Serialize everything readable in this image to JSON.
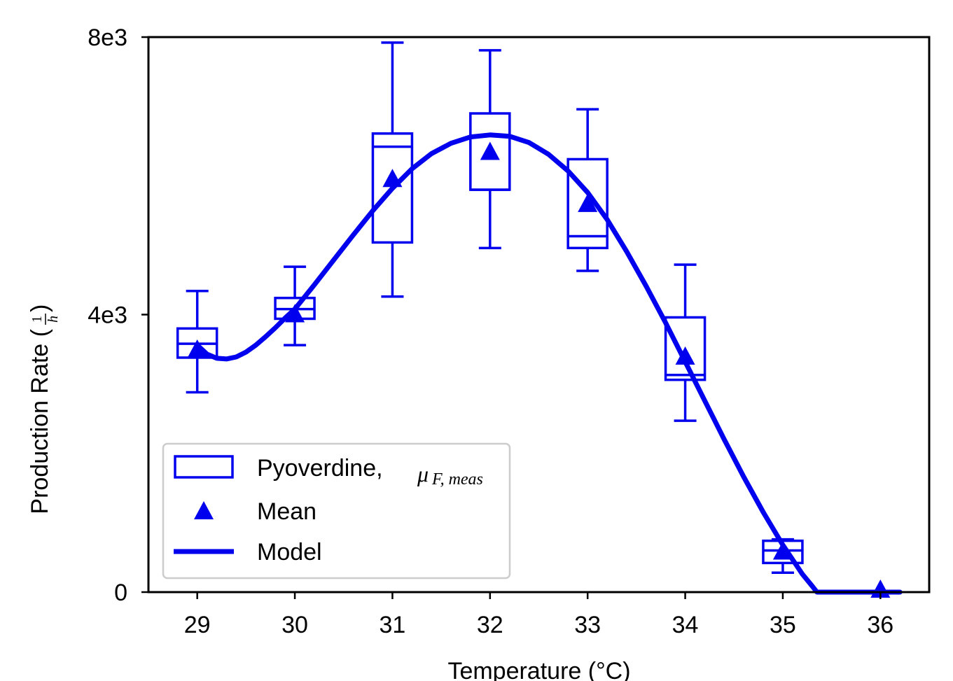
{
  "chart_data": {
    "type": "box",
    "title": "",
    "xlabel": "Temperature (°C)",
    "ylabel": "Production Rate (1/h)",
    "ylabel_parts": {
      "text": "Production Rate (",
      "num": "1",
      "den": "h",
      "close": ")"
    },
    "xlim": [
      28.5,
      36.5
    ],
    "ylim": [
      0,
      8000
    ],
    "x_ticks": [
      29,
      30,
      31,
      32,
      33,
      34,
      35,
      36
    ],
    "x_tick_labels": [
      "29",
      "30",
      "31",
      "32",
      "33",
      "34",
      "35",
      "36"
    ],
    "y_ticks": [
      0,
      4000,
      8000
    ],
    "y_tick_labels": [
      "0",
      "4e3",
      "8e3"
    ],
    "grid": false,
    "legend_position": "lower-left",
    "color": "#0000ee",
    "boxes": [
      {
        "x": 29,
        "whisker_low": 2880,
        "q1": 3380,
        "median": 3580,
        "q3": 3800,
        "whisker_high": 4340
      },
      {
        "x": 30,
        "whisker_low": 3560,
        "q1": 3940,
        "median": 4080,
        "q3": 4240,
        "whisker_high": 4690
      },
      {
        "x": 31,
        "whisker_low": 4260,
        "q1": 5040,
        "median": 6420,
        "q3": 6610,
        "whisker_high": 7920
      },
      {
        "x": 32,
        "whisker_low": 4960,
        "q1": 5800,
        "median": 5800,
        "q3": 6900,
        "whisker_high": 7810
      },
      {
        "x": 33,
        "whisker_low": 4630,
        "q1": 4960,
        "median": 5130,
        "q3": 6240,
        "whisker_high": 6960
      },
      {
        "x": 34,
        "whisker_low": 2470,
        "q1": 3060,
        "median": 3130,
        "q3": 3960,
        "whisker_high": 4720
      },
      {
        "x": 35,
        "whisker_low": 280,
        "q1": 420,
        "median": 600,
        "q3": 740,
        "whisker_high": 760
      },
      {
        "x": 36,
        "whisker_low": 0,
        "q1": 0,
        "median": 0,
        "q3": 0,
        "whisker_high": 0
      }
    ],
    "series": [
      {
        "name": "Mean",
        "type": "scatter",
        "marker": "triangle",
        "x": [
          29,
          30,
          31,
          32,
          33,
          34,
          35,
          36
        ],
        "y": [
          3480,
          3990,
          5940,
          6330,
          5580,
          3380,
          570,
          20
        ]
      },
      {
        "name": "Model",
        "type": "line",
        "x": [
          29.0,
          29.1,
          29.2,
          29.3,
          29.4,
          29.5,
          29.6,
          29.7,
          29.8,
          29.9,
          30.0,
          30.2,
          30.4,
          30.6,
          30.8,
          31.0,
          31.2,
          31.4,
          31.6,
          31.8,
          32.0,
          32.2,
          32.4,
          32.6,
          32.8,
          33.0,
          33.2,
          33.4,
          33.6,
          33.8,
          34.0,
          34.2,
          34.4,
          34.6,
          34.8,
          35.0,
          35.2,
          35.3,
          35.35,
          35.5,
          35.7,
          35.9,
          36.1,
          36.2
        ],
        "y": [
          3560,
          3430,
          3370,
          3360,
          3390,
          3460,
          3560,
          3680,
          3810,
          3950,
          4080,
          4430,
          4790,
          5150,
          5500,
          5820,
          6100,
          6320,
          6470,
          6560,
          6590,
          6570,
          6480,
          6310,
          6070,
          5760,
          5370,
          4910,
          4410,
          3880,
          3320,
          2760,
          2200,
          1660,
          1150,
          680,
          260,
          90,
          0,
          0,
          0,
          0,
          0,
          0
        ]
      }
    ],
    "legend": [
      {
        "label": "Pyoverdine, ",
        "math": "μ",
        "math_sub": "F, meas",
        "marker": "box"
      },
      {
        "label": "Mean",
        "marker": "triangle"
      },
      {
        "label": "Model",
        "marker": "line"
      }
    ]
  }
}
